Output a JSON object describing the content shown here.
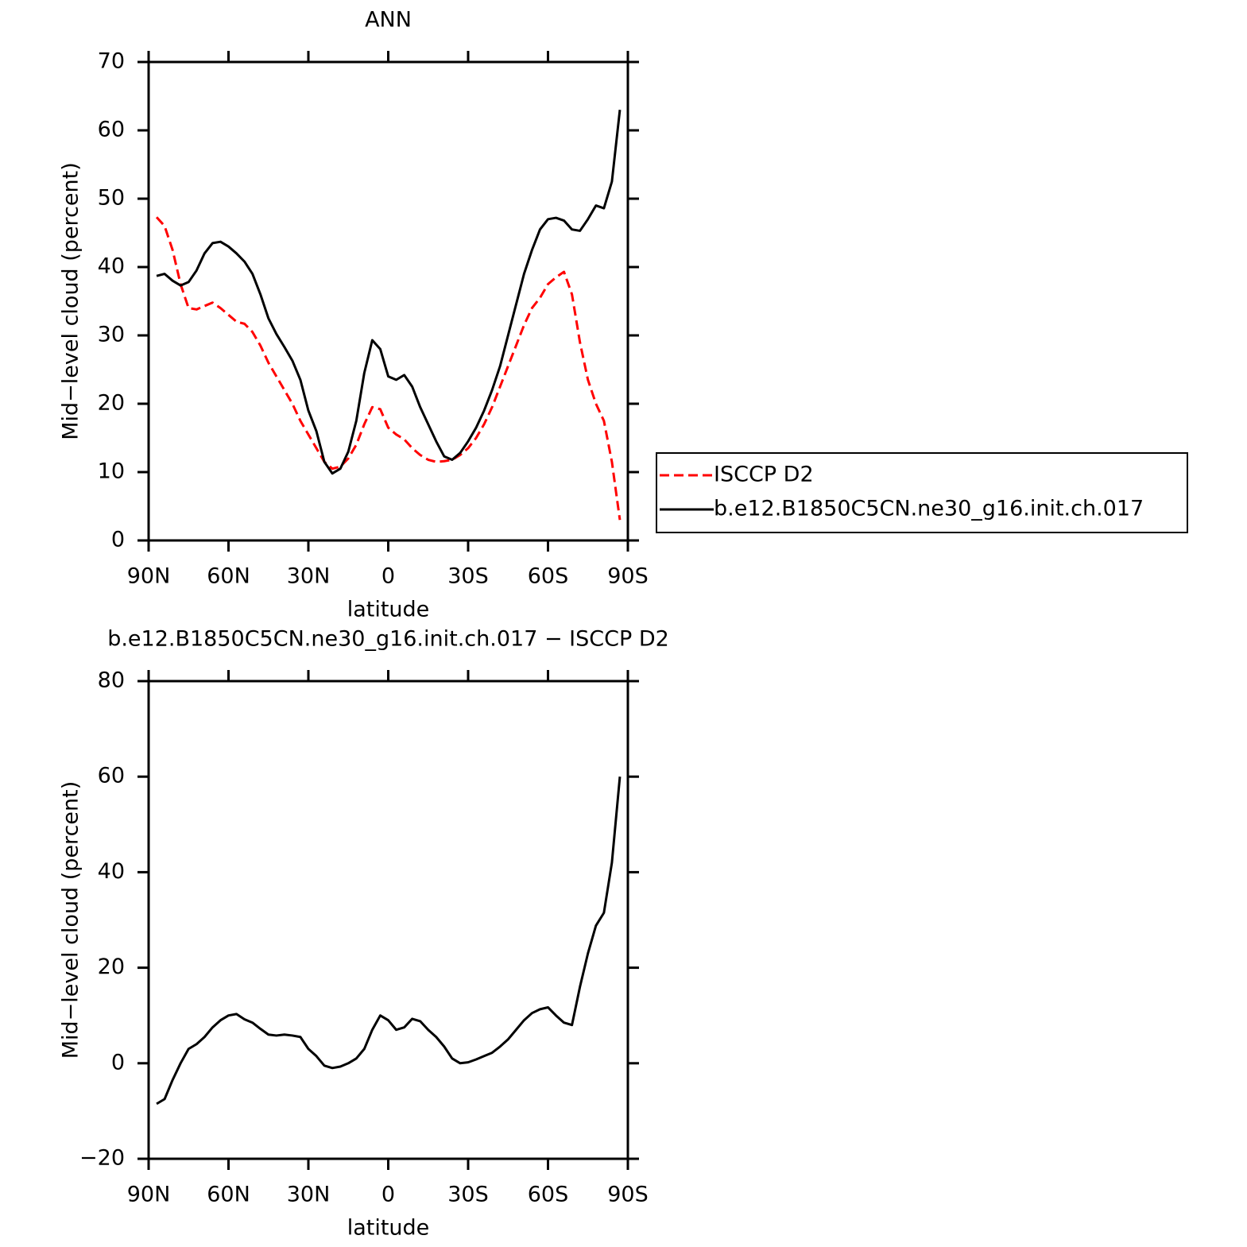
{
  "chart_data": [
    {
      "type": "line",
      "title": "ANN",
      "xlabel": "latitude",
      "ylabel": "Mid−level cloud (percent)",
      "x": [
        87,
        84,
        81,
        78,
        75,
        72,
        69,
        66,
        63,
        60,
        57,
        54,
        51,
        48,
        45,
        42,
        39,
        36,
        33,
        30,
        27,
        24,
        21,
        18,
        15,
        12,
        9,
        6,
        3,
        0,
        -3,
        -6,
        -9,
        -12,
        -15,
        -18,
        -21,
        -24,
        -27,
        -30,
        -33,
        -36,
        -39,
        -42,
        -45,
        -48,
        -51,
        -54,
        -57,
        -60,
        -63,
        -66,
        -69,
        -72,
        -75,
        -78,
        -81,
        -84,
        -87
      ],
      "series": [
        {
          "name": "ISCCP D2",
          "color": "#ff0000",
          "line_style": "dashed",
          "values": [
            47.3,
            46.0,
            42.5,
            37.5,
            34.0,
            33.8,
            34.3,
            34.8,
            34.0,
            33.0,
            32.0,
            31.7,
            30.5,
            28.5,
            26.0,
            24.0,
            22.0,
            20.0,
            17.5,
            15.5,
            13.5,
            11.5,
            10.5,
            10.8,
            12.0,
            14.0,
            17.0,
            19.5,
            19.2,
            16.5,
            15.5,
            14.8,
            13.5,
            12.5,
            11.8,
            11.5,
            11.6,
            11.8,
            12.5,
            13.5,
            15.0,
            17.0,
            19.5,
            22.5,
            25.5,
            28.5,
            31.5,
            34.0,
            35.5,
            37.5,
            38.5,
            39.3,
            36.0,
            29.0,
            23.5,
            20.0,
            17.5,
            11.5,
            3.0
          ]
        },
        {
          "name": "b.e12.B1850C5CN.ne30_g16.init.ch.017",
          "color": "#000000",
          "line_style": "solid",
          "values": [
            38.7,
            39.0,
            38.0,
            37.3,
            37.8,
            39.5,
            42.0,
            43.5,
            43.7,
            43.0,
            42.0,
            40.8,
            39.0,
            36.0,
            32.5,
            30.2,
            28.3,
            26.3,
            23.5,
            19.0,
            16.0,
            11.5,
            9.8,
            10.5,
            13.0,
            17.5,
            24.5,
            29.3,
            28.0,
            24.0,
            23.5,
            24.2,
            22.5,
            19.5,
            17.0,
            14.5,
            12.3,
            11.8,
            12.8,
            14.5,
            16.5,
            19.0,
            22.0,
            25.5,
            30.0,
            34.5,
            39.0,
            42.5,
            45.5,
            47.0,
            47.2,
            46.8,
            45.5,
            45.3,
            47.0,
            49.0,
            48.6,
            52.5,
            63.0
          ]
        }
      ],
      "xlim": [
        90,
        -90
      ],
      "xticks": [
        {
          "value": 90,
          "label": "90N"
        },
        {
          "value": 60,
          "label": "60N"
        },
        {
          "value": 30,
          "label": "30N"
        },
        0,
        {
          "value": -30,
          "label": "30S"
        },
        {
          "value": -60,
          "label": "60S"
        },
        {
          "value": -90,
          "label": "90S"
        }
      ],
      "ylim": [
        0,
        70
      ],
      "yticks": [
        0,
        10,
        20,
        30,
        40,
        50,
        60,
        70
      ],
      "legend": "right",
      "grid": false
    },
    {
      "type": "line",
      "title": "b.e12.B1850C5CN.ne30_g16.init.ch.017 − ISCCP D2",
      "xlabel": "latitude",
      "ylabel": "Mid−level cloud (percent)",
      "x": [
        87,
        84,
        81,
        78,
        75,
        72,
        69,
        66,
        63,
        60,
        57,
        54,
        51,
        48,
        45,
        42,
        39,
        36,
        33,
        30,
        27,
        24,
        21,
        18,
        15,
        12,
        9,
        6,
        3,
        0,
        -3,
        -6,
        -9,
        -12,
        -15,
        -18,
        -21,
        -24,
        -27,
        -30,
        -33,
        -36,
        -39,
        -42,
        -45,
        -48,
        -51,
        -54,
        -57,
        -60,
        -63,
        -66,
        -69,
        -72,
        -75,
        -78,
        -81,
        -84,
        -87
      ],
      "series": [
        {
          "color": "#000000",
          "line_style": "solid",
          "values": [
            -8.5,
            -7.5,
            -3.5,
            0,
            3.0,
            4.0,
            5.5,
            7.5,
            9.0,
            10.0,
            10.3,
            9.2,
            8.5,
            7.2,
            6.0,
            5.8,
            6.0,
            5.8,
            5.5,
            3.0,
            1.5,
            -0.5,
            -1.0,
            -0.7,
            0,
            1.0,
            3.0,
            7.0,
            10.0,
            9.0,
            7.0,
            7.5,
            9.3,
            8.8,
            7.0,
            5.5,
            3.5,
            1.0,
            0,
            0.2,
            0.8,
            1.5,
            2.2,
            3.5,
            5.0,
            7.0,
            9.0,
            10.5,
            11.3,
            11.7,
            10.0,
            8.5,
            8.0,
            16.0,
            23.0,
            28.8,
            31.5,
            42.0,
            60.0
          ]
        }
      ],
      "xlim": [
        90,
        -90
      ],
      "xticks": [
        {
          "value": 90,
          "label": "90N"
        },
        {
          "value": 60,
          "label": "60N"
        },
        {
          "value": 30,
          "label": "30N"
        },
        0,
        {
          "value": -30,
          "label": "30S"
        },
        {
          "value": -60,
          "label": "60S"
        },
        {
          "value": -90,
          "label": "90S"
        }
      ],
      "ylim": [
        -20,
        80
      ],
      "yticks": [
        {
          "value": -20,
          "label": "−20"
        },
        0,
        20,
        40,
        60,
        80
      ],
      "grid": false
    }
  ]
}
